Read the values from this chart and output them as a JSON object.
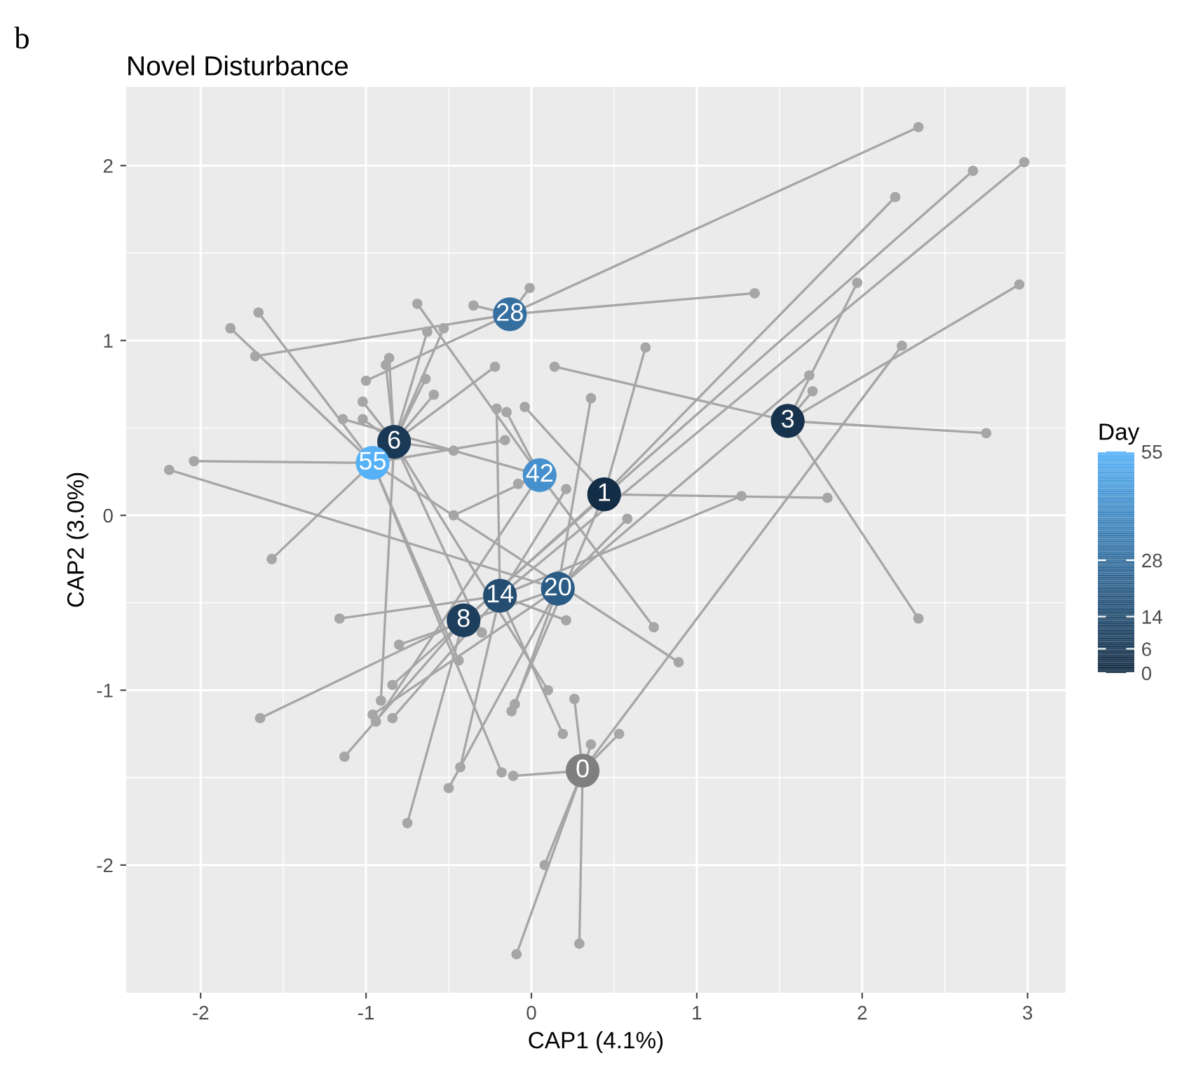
{
  "chart_data": {
    "type": "scatter",
    "title": "Novel Disturbance",
    "xlabel": "CAP1 (4.1%)",
    "ylabel": "CAP2 (3.0%)",
    "clabel": "Day",
    "annotations": [
      "b",
      {
        "text": "0",
        "x": 0.31,
        "y": -1.46
      },
      {
        "text": "1",
        "x": 0.44,
        "y": 0.12
      },
      {
        "text": "3",
        "x": 1.55,
        "y": 0.54
      },
      {
        "text": "6",
        "x": -0.83,
        "y": 0.42
      },
      {
        "text": "8",
        "x": -0.41,
        "y": -0.6
      },
      {
        "text": "14",
        "x": -0.19,
        "y": -0.46
      },
      {
        "text": "20",
        "x": 0.16,
        "y": -0.42
      },
      {
        "text": "28",
        "x": -0.13,
        "y": 1.15
      },
      {
        "text": "42",
        "x": 0.05,
        "y": 0.23
      },
      {
        "text": "55",
        "x": -0.96,
        "y": 0.3
      }
    ],
    "xlim": [
      -2.45,
      3.23
    ],
    "ylim": [
      -2.73,
      2.45
    ],
    "xticks": [
      -2,
      -1,
      0,
      1,
      2,
      3
    ],
    "yticks": [
      -2,
      -1,
      0,
      1,
      2
    ],
    "grid": true,
    "clim": [
      0,
      55
    ],
    "cticks": [
      0,
      6,
      14,
      28,
      55
    ],
    "marker": "circle",
    "series": [
      {
        "type": "scatter",
        "colors": [
          "#7f7f7f",
          "#142d46",
          "#17324d",
          "#1a3a57",
          "#1d3e5d",
          "#244d71",
          "#2b5c85",
          "#356f9f",
          "#4691cc",
          "#56b1f7"
        ],
        "x": [
          0.31,
          0.44,
          1.55,
          -0.83,
          -0.41,
          -0.19,
          0.16,
          -0.13,
          0.05,
          -0.96
        ],
        "values": [
          -1.46,
          0.12,
          0.54,
          0.42,
          -0.6,
          -0.46,
          -0.42,
          1.15,
          0.23,
          0.3
        ],
        "cvalues": [
          null,
          1,
          3,
          6,
          8,
          14,
          20,
          28,
          42,
          55
        ]
      },
      {
        "type": "scatter",
        "color": "#a6a6a6",
        "x": [
          -0.11,
          0.26,
          0.36,
          0.08,
          -0.09,
          0.29,
          0.53,
          2.24
        ],
        "values": [
          -1.49,
          -1.05,
          -1.31,
          -2.0,
          -2.51,
          -2.45,
          -1.25,
          0.97
        ]
      },
      {
        "type": "scatter",
        "color": "#a6a6a6",
        "x": [
          -0.04,
          2.2,
          0.69,
          1.79,
          -0.84,
          -0.12
        ],
        "values": [
          0.62,
          1.82,
          0.96,
          0.1,
          -0.97,
          -1.12
        ]
      },
      {
        "type": "scatter",
        "color": "#a6a6a6",
        "x": [
          0.14,
          1.97,
          2.95,
          1.7,
          2.75,
          2.34
        ],
        "values": [
          0.85,
          1.33,
          1.32,
          0.71,
          0.47,
          -0.59
        ]
      },
      {
        "type": "scatter",
        "color": "#a6a6a6",
        "x": [
          -0.63,
          -0.53,
          -0.86,
          -0.88,
          -0.64,
          -0.59,
          -0.22,
          -1.02,
          -1.02,
          -0.47,
          -0.91,
          -0.3,
          0.1
        ],
        "values": [
          1.05,
          1.07,
          0.9,
          0.86,
          0.78,
          0.69,
          0.85,
          0.65,
          0.55,
          0.37,
          -1.06,
          -0.67,
          -1.0
        ]
      },
      {
        "type": "scatter",
        "color": "#a6a6a6",
        "x": [
          2.67,
          -1.64,
          -1.13,
          -0.75
        ],
        "values": [
          1.97,
          -1.16,
          -1.38,
          -1.76
        ]
      },
      {
        "type": "scatter",
        "color": "#a6a6a6",
        "x": [
          2.98,
          -0.21,
          0.21,
          1.27,
          -1.16,
          -0.84,
          -0.43,
          0.19,
          0.21
        ],
        "values": [
          2.02,
          0.61,
          0.15,
          0.11,
          -0.59,
          -1.16,
          -1.44,
          -1.25,
          -0.6
        ]
      },
      {
        "type": "scatter",
        "color": "#a6a6a6",
        "x": [
          -2.19,
          0.36,
          1.68,
          0.58,
          -0.8,
          -0.96,
          -0.5,
          -0.1
        ],
        "values": [
          0.26,
          0.67,
          0.8,
          -0.02,
          -0.74,
          -1.14,
          -1.56,
          -1.08
        ]
      },
      {
        "type": "scatter",
        "color": "#a6a6a6",
        "x": [
          -0.01,
          -0.35,
          -1.67,
          -1.0,
          2.34,
          1.35
        ],
        "values": [
          1.3,
          1.2,
          0.91,
          0.77,
          2.22,
          1.27
        ]
      },
      {
        "type": "scatter",
        "color": "#a6a6a6",
        "x": [
          -0.69,
          -1.14,
          -0.15,
          -0.08,
          -0.47,
          -0.94,
          0.74
        ],
        "values": [
          1.21,
          0.55,
          0.59,
          0.18,
          0.0,
          -1.18,
          -0.64
        ]
      },
      {
        "type": "scatter",
        "color": "#a6a6a6",
        "x": [
          -1.65,
          -1.82,
          -0.16,
          -2.04,
          -1.57,
          -0.44,
          -0.18,
          0.89
        ],
        "values": [
          1.16,
          1.07,
          0.43,
          0.31,
          -0.25,
          -0.83,
          -1.47,
          -0.84
        ]
      }
    ]
  }
}
